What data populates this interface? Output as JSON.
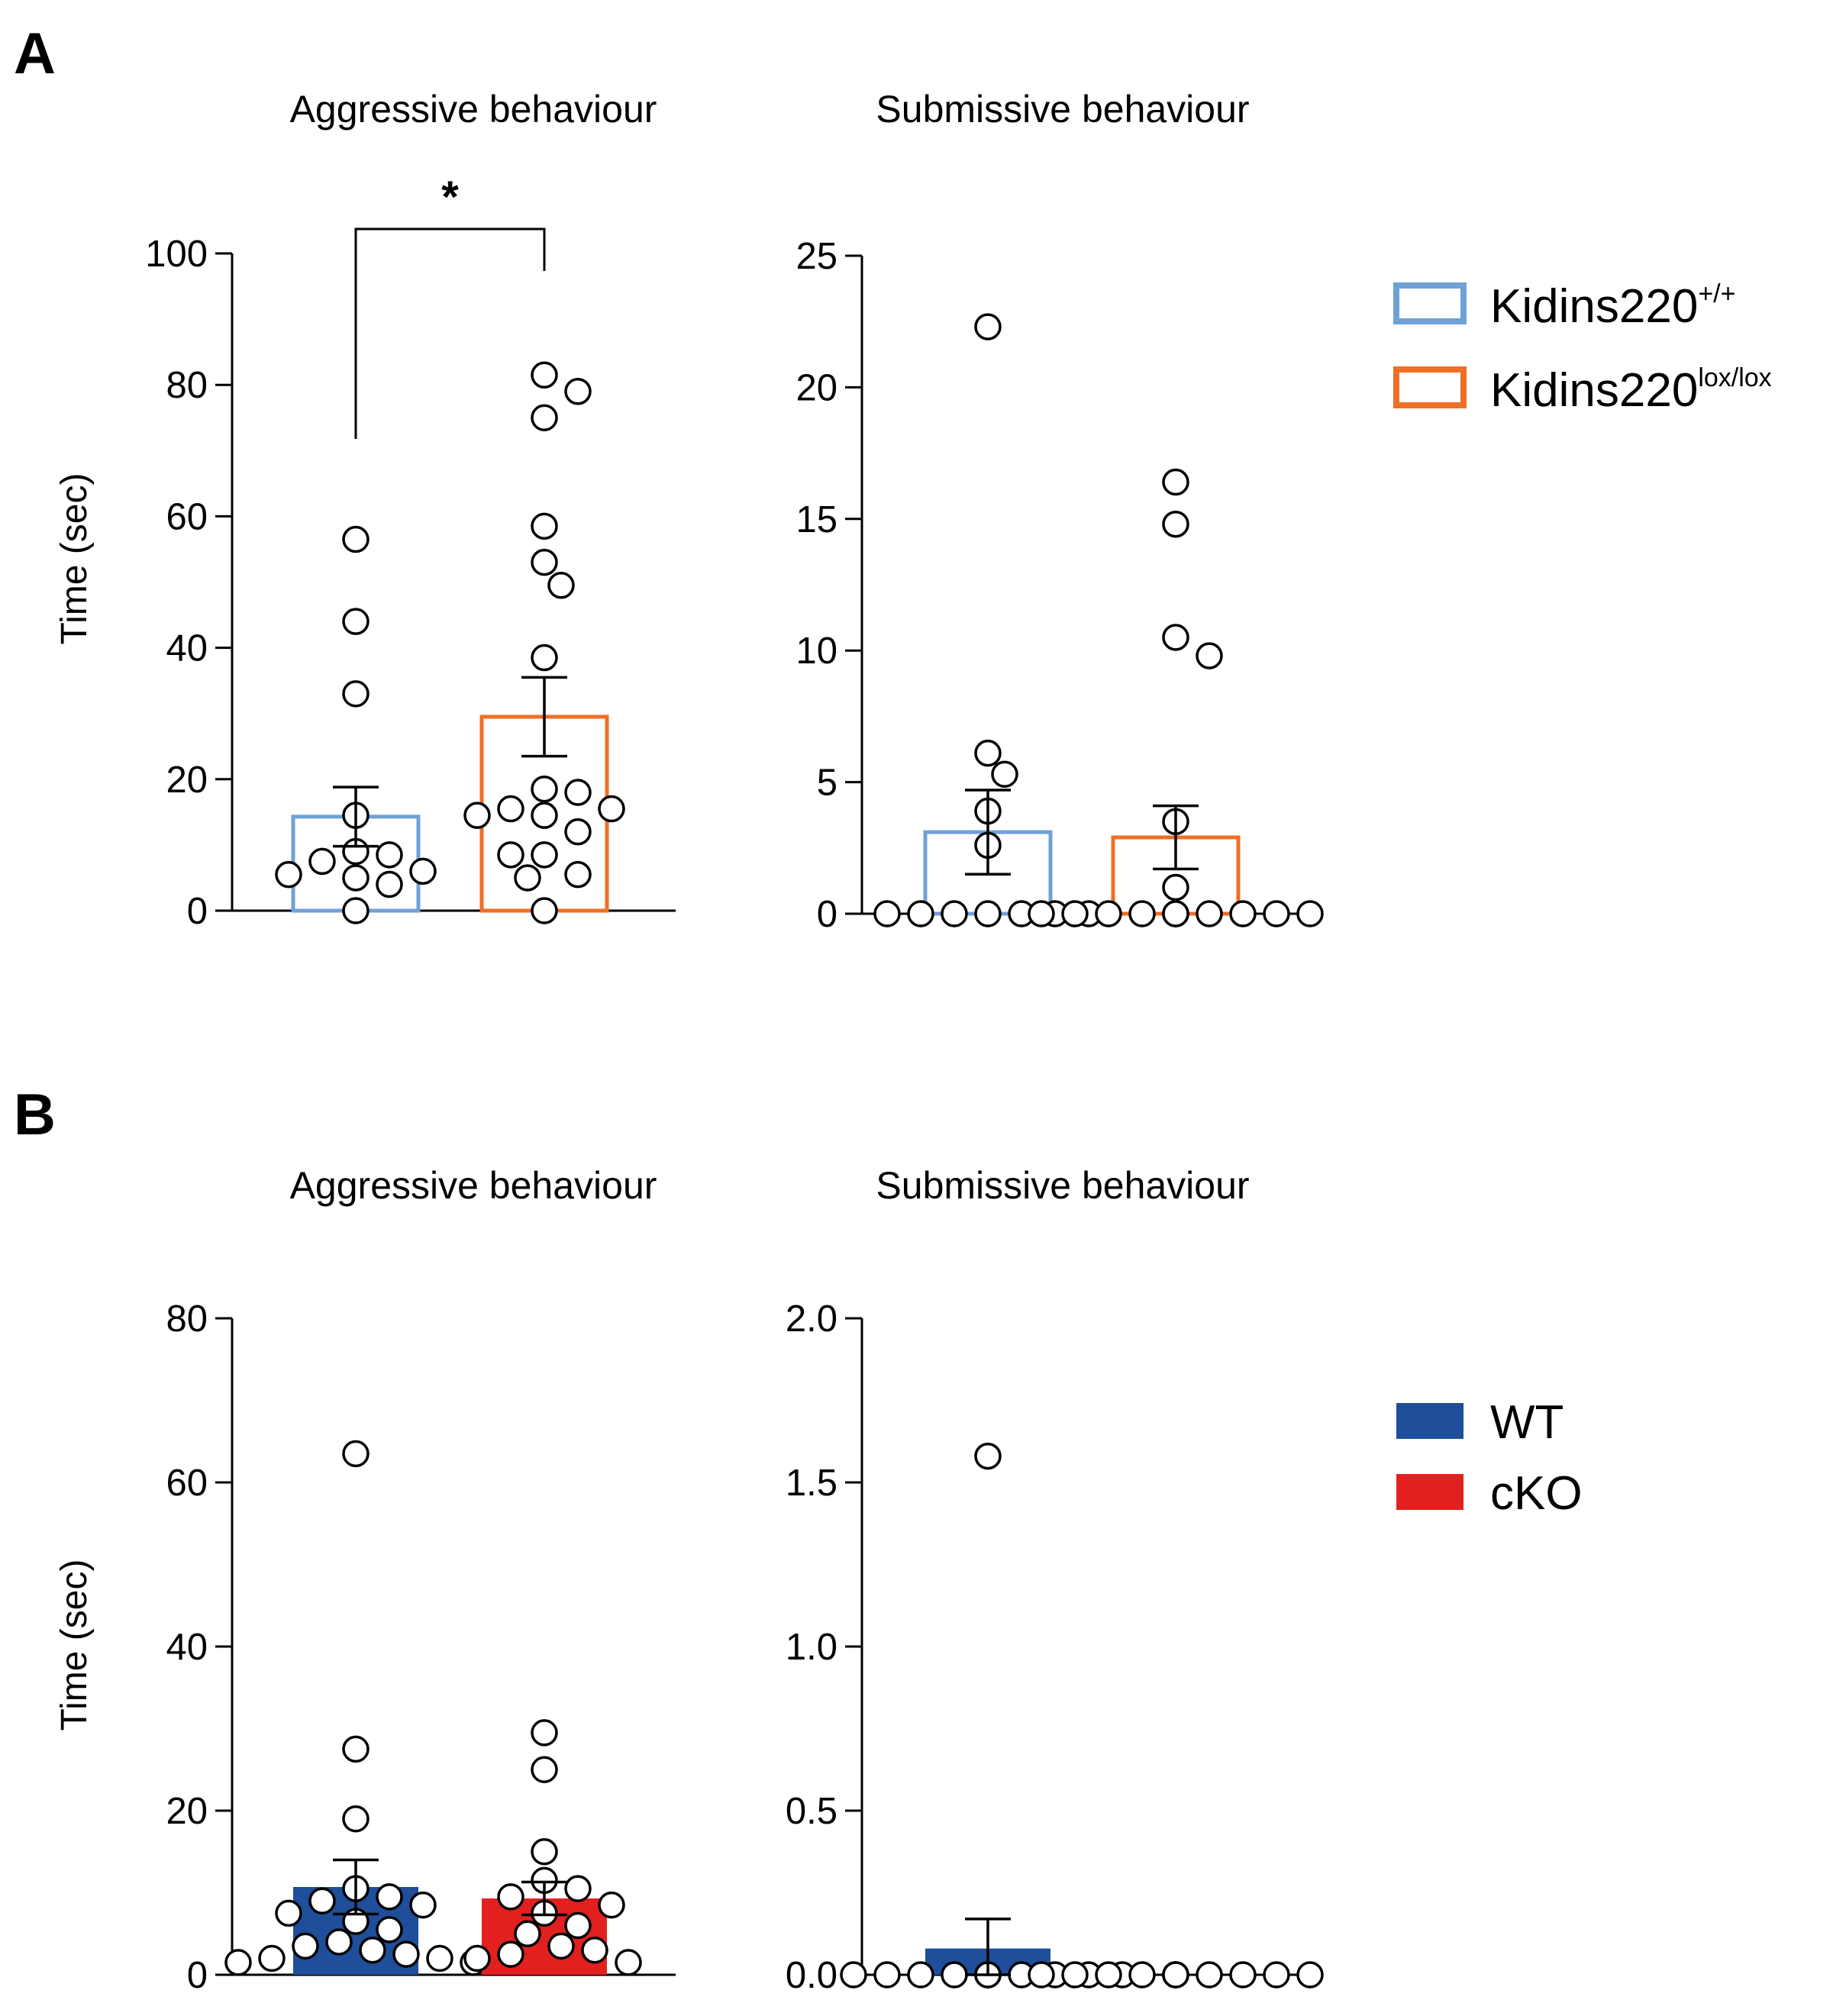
{
  "colors": {
    "wt_outline": "#6fa1d8",
    "lox_outline": "#ee6f25",
    "wt_fill": "#1f4e9b",
    "cko_fill": "#e32020",
    "axis": "#000000",
    "dot_fill": "#ffffff"
  },
  "panels": {
    "A": {
      "letter": "A",
      "legend": [
        {
          "base": "Kidins220",
          "sup": "+/+",
          "color_key": "wt_outline",
          "style": "outline"
        },
        {
          "base": "Kidins220",
          "sup": "lox/lox",
          "color_key": "lox_outline",
          "style": "outline"
        }
      ]
    },
    "B": {
      "letter": "B",
      "legend": [
        {
          "base": "WT",
          "sup": "",
          "color_key": "wt_fill",
          "style": "filled"
        },
        {
          "base": "cKO",
          "sup": "",
          "color_key": "cko_fill",
          "style": "filled"
        }
      ]
    }
  },
  "chart_data": [
    {
      "id": "A-aggressive",
      "panel": "A",
      "type": "bar",
      "title": "Aggressive behaviour",
      "ylabel": "Time (sec)",
      "ylim": [
        0,
        100
      ],
      "yticks": [
        "0",
        "20",
        "40",
        "60",
        "80",
        "100"
      ],
      "yticks_values": [
        0,
        20,
        40,
        60,
        80,
        100
      ],
      "significance": "*",
      "series": [
        {
          "name": "Kidins220+/+",
          "color_key": "wt_outline",
          "style": "outline",
          "mean": 14.3,
          "sem": 4.5,
          "points": [
            56.5,
            44,
            33,
            14.5,
            9,
            8.5,
            7.5,
            6,
            5.5,
            5,
            4,
            0
          ]
        },
        {
          "name": "Kidins220lox/lox",
          "color_key": "lox_outline",
          "style": "outline",
          "mean": 29.5,
          "sem": 6,
          "points": [
            81.5,
            79,
            75,
            58.5,
            53,
            49.5,
            38.5,
            18.5,
            18,
            15.5,
            15.5,
            14.5,
            14.5,
            12,
            8.5,
            8.5,
            5.5,
            5,
            0
          ]
        }
      ]
    },
    {
      "id": "A-submissive",
      "panel": "A",
      "type": "bar",
      "title": "Submissive behaviour",
      "ylabel": "",
      "ylim": [
        0,
        25
      ],
      "yticks": [
        "0",
        "5",
        "10",
        "15",
        "20",
        "25"
      ],
      "yticks_values": [
        0,
        5,
        10,
        15,
        20,
        25
      ],
      "series": [
        {
          "name": "Kidins220+/+",
          "color_key": "wt_outline",
          "style": "outline",
          "mean": 3.1,
          "sem": 1.6,
          "points": [
            22.3,
            6.1,
            5.3,
            3.9,
            2.6,
            0,
            0,
            0,
            0,
            0,
            0,
            0
          ]
        },
        {
          "name": "Kidins220lox/lox",
          "color_key": "lox_outline",
          "style": "outline",
          "mean": 2.9,
          "sem": 1.2,
          "points": [
            16.4,
            14.8,
            10.5,
            9.8,
            3.5,
            1,
            0,
            0,
            0,
            0,
            0,
            0,
            0,
            0,
            0,
            0,
            0,
            0
          ]
        }
      ]
    },
    {
      "id": "B-aggressive",
      "panel": "B",
      "type": "bar",
      "title": "Aggressive behaviour",
      "ylabel": "Time (sec)",
      "ylim": [
        0,
        80
      ],
      "yticks": [
        "0",
        "20",
        "40",
        "60",
        "80"
      ],
      "yticks_values": [
        0,
        20,
        40,
        60,
        80
      ],
      "series": [
        {
          "name": "WT",
          "color_key": "wt_fill",
          "style": "filled",
          "mean": 10.7,
          "sem": 3.3,
          "points": [
            63.5,
            27.5,
            19,
            10.5,
            9.5,
            9,
            8.5,
            7.5,
            6.5,
            5.5,
            4,
            3.5,
            3,
            2.5,
            2,
            2,
            1.5,
            1.5
          ]
        },
        {
          "name": "cKO",
          "color_key": "cko_fill",
          "style": "filled",
          "mean": 9.3,
          "sem": 2,
          "points": [
            29.5,
            25,
            15,
            11.5,
            10.5,
            9.5,
            8.5,
            7.5,
            6,
            5,
            3.5,
            3,
            2.5,
            2,
            1.5
          ]
        }
      ]
    },
    {
      "id": "B-submissive",
      "panel": "B",
      "type": "bar",
      "title": "Submissive behaviour",
      "ylabel": "",
      "ylim": [
        0,
        2
      ],
      "yticks": [
        "0.0",
        "0.5",
        "1.0",
        "1.5",
        "2.0"
      ],
      "yticks_values": [
        0,
        0.5,
        1,
        1.5,
        2
      ],
      "series": [
        {
          "name": "WT",
          "color_key": "wt_fill",
          "style": "filled",
          "mean": 0.08,
          "sem": 0.09,
          "points": [
            1.58,
            0,
            0,
            0,
            0,
            0,
            0,
            0,
            0,
            0,
            0,
            0,
            0,
            0,
            0,
            0,
            0,
            0
          ]
        },
        {
          "name": "cKO",
          "color_key": "cko_fill",
          "style": "filled",
          "mean": 0,
          "sem": 0,
          "points": [
            0,
            0,
            0,
            0,
            0,
            0,
            0,
            0,
            0,
            0,
            0,
            0,
            0,
            0,
            0
          ]
        }
      ]
    }
  ]
}
